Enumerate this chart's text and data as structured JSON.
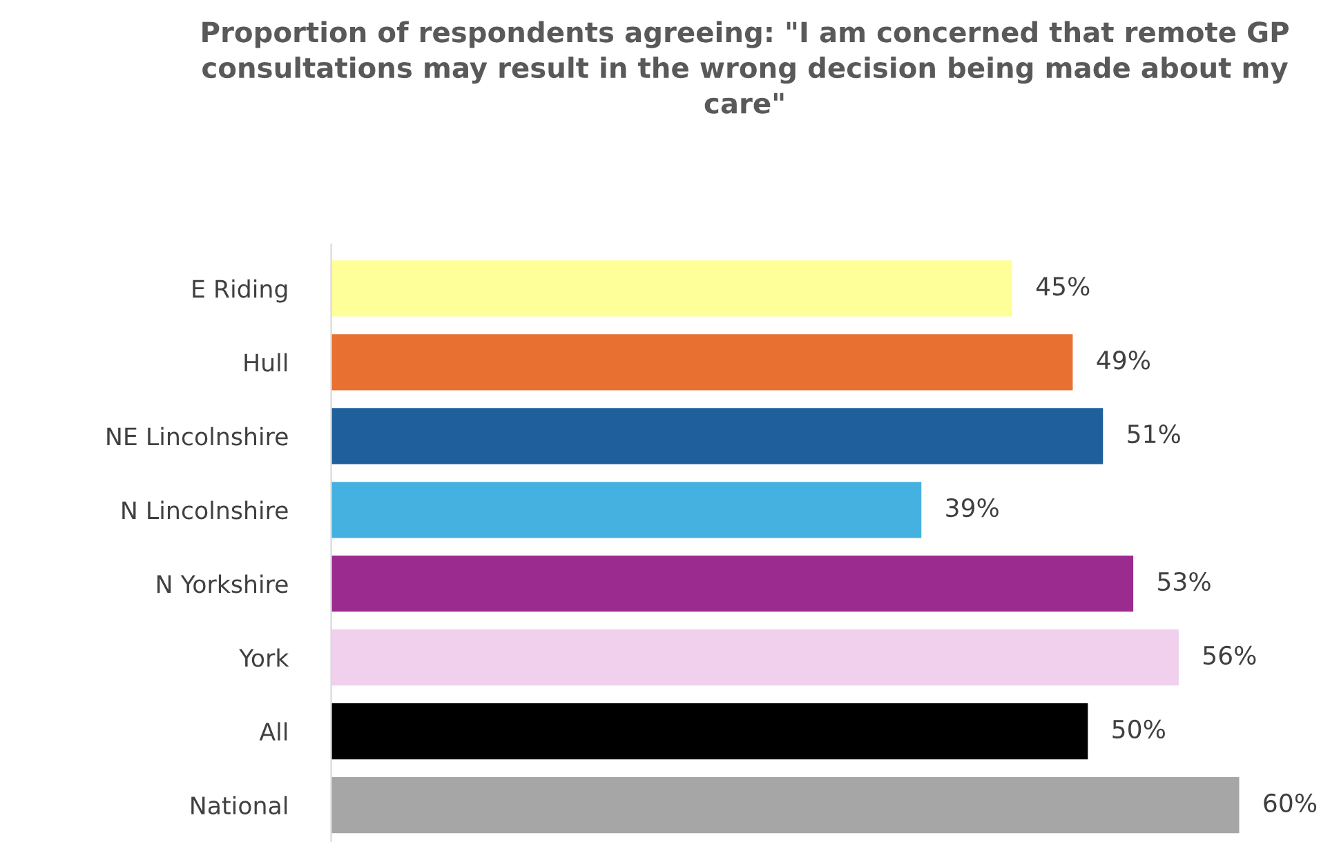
{
  "chart_data": {
    "type": "bar",
    "orientation": "horizontal",
    "title": "Proportion of respondents agreeing: \"I am concerned that remote GP consultations may result in the wrong decision being made about my care\"",
    "categories": [
      "E Riding",
      "Hull",
      "NE Lincolnshire",
      "N Lincolnshire",
      "N Yorkshire",
      "York",
      "All",
      "National"
    ],
    "values": [
      45,
      49,
      51,
      39,
      53,
      56,
      50,
      60
    ],
    "colors": [
      "#ffff99",
      "#e87131",
      "#1f5f9b",
      "#45b1e0",
      "#9b2b8f",
      "#f0d0ec",
      "#000000",
      "#a6a6a6"
    ],
    "value_labels": [
      "45%",
      "49%",
      "51%",
      "39%",
      "53%",
      "56%",
      "50%",
      "60%"
    ],
    "tick_labels": "y",
    "legend": false
  }
}
